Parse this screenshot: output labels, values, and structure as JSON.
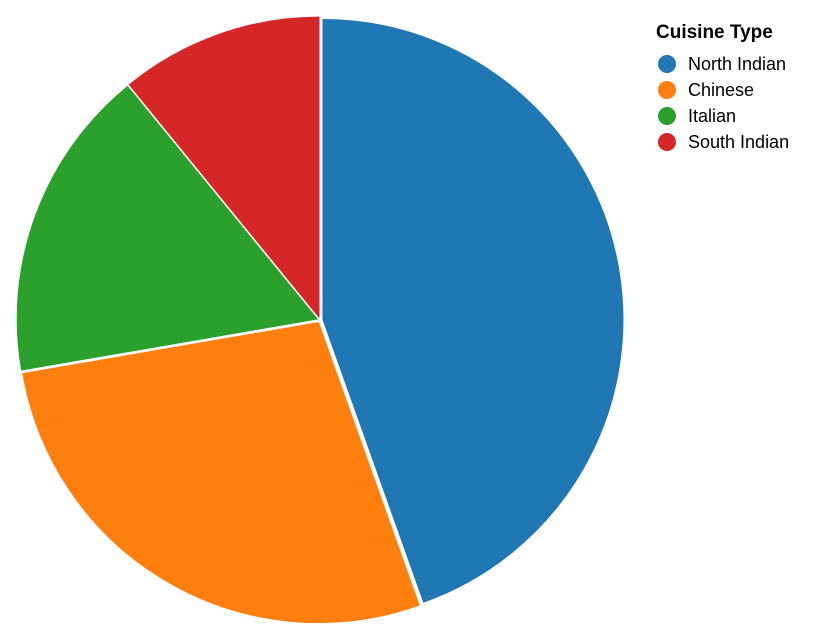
{
  "chart_data": {
    "type": "pie",
    "legend_title": "Cuisine Type",
    "legend_position": "top-right",
    "categories": [
      "North Indian",
      "Chinese",
      "Italian",
      "South Indian"
    ],
    "values": [
      45,
      28,
      17,
      11
    ],
    "colors": [
      "#1f77b4",
      "#ff7f0e",
      "#2ca02c",
      "#d62728"
    ],
    "start_angle_deg": 0,
    "direction": "clockwise"
  }
}
